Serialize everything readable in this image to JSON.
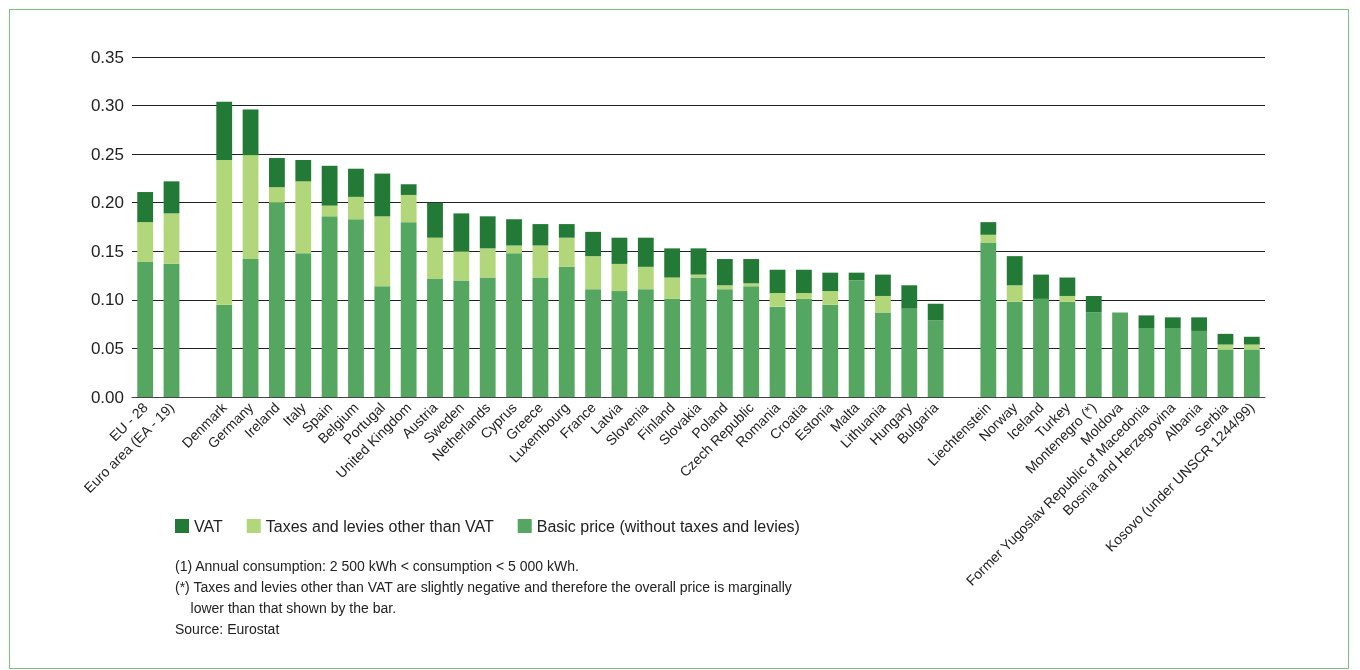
{
  "chart_data": {
    "type": "bar",
    "stacked": true,
    "categories": [
      "EU - 28",
      "Euro area (EA - 19)",
      null,
      "Denmark",
      "Germany",
      "Ireland",
      "Italy",
      "Spain",
      "Belgium",
      "Portugal",
      "United Kingdom",
      "Austria",
      "Sweden",
      "Netherlands",
      "Cyprus",
      "Greece",
      "Luxembourg",
      "France",
      "Latvia",
      "Slovenia",
      "Finland",
      "Slovakia",
      "Poland",
      "Czech Republic",
      "Romania",
      "Croatia",
      "Estonia",
      "Malta",
      "Lithuania",
      "Hungary",
      "Bulgaria",
      null,
      "Liechtenstein",
      "Norway",
      "Iceland",
      "Turkey",
      "Montenegro (*)",
      "Moldova",
      "Former Yugoslav Republic of Macedonia",
      "Bosnia and Herzegovina",
      "Albania",
      "Serbia",
      "Kosovo (under UNSCR 1244/99)"
    ],
    "series": [
      {
        "name": "Basic price (without taxes and levies)",
        "color": "#55a660",
        "values": [
          0.139,
          0.137,
          null,
          0.095,
          0.142,
          0.2,
          0.148,
          0.186,
          0.183,
          0.114,
          0.18,
          0.122,
          0.12,
          0.123,
          0.148,
          0.123,
          0.134,
          0.111,
          0.109,
          0.111,
          0.101,
          0.123,
          0.111,
          0.114,
          0.093,
          0.101,
          0.095,
          0.12,
          0.087,
          0.091,
          0.079,
          null,
          0.159,
          0.098,
          0.101,
          0.098,
          0.087,
          0.087,
          0.071,
          0.071,
          0.068,
          0.049,
          0.049
        ]
      },
      {
        "name": "Taxes and levies other than VAT",
        "color": "#b2d67a",
        "values": [
          0.041,
          0.052,
          null,
          0.149,
          0.107,
          0.016,
          0.074,
          0.011,
          0.023,
          0.072,
          0.028,
          0.042,
          0.03,
          0.03,
          0.008,
          0.033,
          0.03,
          0.034,
          0.028,
          0.023,
          0.022,
          0.003,
          0.004,
          0.003,
          0.014,
          0.006,
          0.014,
          0,
          0.017,
          0,
          0,
          null,
          0.008,
          0.017,
          0,
          0.006,
          0,
          0,
          0,
          0,
          0,
          0.005,
          0.005
        ]
      },
      {
        "name": "VAT",
        "color": "#237a37",
        "values": [
          0.031,
          0.033,
          null,
          0.06,
          0.047,
          0.03,
          0.022,
          0.041,
          0.029,
          0.044,
          0.011,
          0.036,
          0.039,
          0.033,
          0.027,
          0.022,
          0.014,
          0.025,
          0.027,
          0.03,
          0.03,
          0.027,
          0.027,
          0.025,
          0.024,
          0.024,
          0.019,
          0.008,
          0.022,
          0.024,
          0.017,
          null,
          0.013,
          0.03,
          0.025,
          0.019,
          0.017,
          0,
          0.013,
          0.011,
          0.014,
          0.011,
          0.008
        ]
      }
    ],
    "ylim": [
      0,
      0.35
    ],
    "yticks": [
      {
        "value": 0,
        "label": "0.00"
      },
      {
        "value": 0.05,
        "label": "0.05"
      },
      {
        "value": 0.1,
        "label": "0.10"
      },
      {
        "value": 0.15,
        "label": "0.15"
      },
      {
        "value": 0.2,
        "label": "0.20"
      },
      {
        "value": 0.25,
        "label": "0.25"
      },
      {
        "value": 0.3,
        "label": "0.30"
      },
      {
        "value": 0.35,
        "label": "0.35"
      }
    ],
    "grid": "y",
    "legend": "bottom left",
    "annotations": [
      "(1) Annual consumption: 2 500 kWh < consumption < 5 000 kWh.",
      "(*) Taxes and levies other than VAT are slightly negative and therefore the overall price is marginally\nlower than that shown by the bar.",
      "Source: Eurostat"
    ]
  }
}
